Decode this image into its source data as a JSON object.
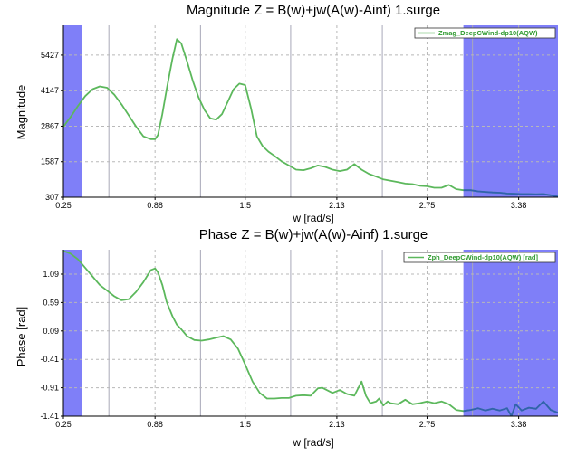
{
  "colors": {
    "series": "#5cb85c",
    "series_highlight": "#3060b0",
    "band": "#7f7ff8",
    "axis": "#000000",
    "grid_dash": "#b8b8b8",
    "grid_solid": "#a8a8b8"
  },
  "chart_data": [
    {
      "type": "line",
      "title": "Magnitude Z = B(w)+jw(A(w)-Ainf) 1.surge",
      "xlabel": "w [rad/s]",
      "ylabel": "Magnitude",
      "xlim": [
        0.25,
        3.65
      ],
      "ylim": [
        307,
        6500
      ],
      "x_ticks": [
        "0.25",
        "0.88",
        "1.5",
        "2.13",
        "2.75",
        "3.38"
      ],
      "y_ticks": [
        "307",
        "1587",
        "2867",
        "4147",
        "5427"
      ],
      "grid": true,
      "legend": "top-right",
      "highlight_ranges": [
        [
          0.25,
          0.38
        ],
        [
          3.0,
          3.65
        ]
      ],
      "series": [
        {
          "name": "Zmag_DeepCWind-dp10(AQW)",
          "x": [
            0.25,
            0.3,
            0.35,
            0.4,
            0.45,
            0.5,
            0.55,
            0.6,
            0.65,
            0.7,
            0.75,
            0.8,
            0.85,
            0.88,
            0.9,
            0.93,
            0.96,
            1.0,
            1.03,
            1.06,
            1.1,
            1.14,
            1.18,
            1.22,
            1.26,
            1.3,
            1.34,
            1.38,
            1.42,
            1.46,
            1.5,
            1.54,
            1.58,
            1.62,
            1.66,
            1.7,
            1.75,
            1.8,
            1.85,
            1.9,
            1.95,
            2.0,
            2.05,
            2.1,
            2.15,
            2.2,
            2.25,
            2.3,
            2.35,
            2.4,
            2.45,
            2.5,
            2.55,
            2.6,
            2.65,
            2.7,
            2.75,
            2.8,
            2.85,
            2.9,
            2.95,
            3.0,
            3.05,
            3.1,
            3.15,
            3.2,
            3.25,
            3.3,
            3.35,
            3.4,
            3.45,
            3.5,
            3.55,
            3.6,
            3.65
          ],
          "y": [
            2850,
            3200,
            3600,
            3950,
            4200,
            4300,
            4250,
            4000,
            3650,
            3250,
            2850,
            2500,
            2400,
            2400,
            2550,
            3300,
            4200,
            5300,
            6000,
            5850,
            5200,
            4500,
            3900,
            3450,
            3150,
            3100,
            3300,
            3750,
            4200,
            4400,
            4350,
            3500,
            2500,
            2150,
            1950,
            1800,
            1600,
            1450,
            1300,
            1280,
            1350,
            1450,
            1400,
            1300,
            1250,
            1300,
            1500,
            1300,
            1150,
            1050,
            950,
            900,
            850,
            800,
            780,
            720,
            700,
            650,
            650,
            750,
            600,
            560,
            560,
            520,
            500,
            480,
            470,
            440,
            430,
            420,
            420,
            410,
            420,
            380,
            330
          ]
        }
      ]
    },
    {
      "type": "line",
      "title": "Phase Z = B(w)+jw(A(w)-Ainf) 1.surge",
      "xlabel": "w [rad/s]",
      "ylabel": "Phase [rad]",
      "xlim": [
        0.25,
        3.65
      ],
      "ylim": [
        -1.41,
        1.52
      ],
      "x_ticks": [
        "0.25",
        "0.88",
        "1.5",
        "2.13",
        "2.75",
        "3.38"
      ],
      "y_ticks": [
        "-1.41",
        "-0.91",
        "-0.41",
        "0.09",
        "0.59",
        "1.09"
      ],
      "grid": true,
      "legend": "top-right",
      "highlight_ranges": [
        [
          0.25,
          0.38
        ],
        [
          3.0,
          3.65
        ]
      ],
      "series": [
        {
          "name": "Zph_DeepCWind-dp10(AQW) [rad]",
          "x": [
            0.25,
            0.3,
            0.35,
            0.4,
            0.45,
            0.5,
            0.55,
            0.6,
            0.65,
            0.7,
            0.75,
            0.8,
            0.85,
            0.88,
            0.9,
            0.93,
            0.96,
            1.0,
            1.03,
            1.06,
            1.1,
            1.15,
            1.2,
            1.25,
            1.3,
            1.35,
            1.4,
            1.45,
            1.5,
            1.55,
            1.6,
            1.65,
            1.7,
            1.75,
            1.8,
            1.85,
            1.9,
            1.95,
            2.0,
            2.03,
            2.06,
            2.1,
            2.15,
            2.2,
            2.25,
            2.28,
            2.3,
            2.33,
            2.36,
            2.4,
            2.42,
            2.45,
            2.48,
            2.5,
            2.55,
            2.6,
            2.65,
            2.7,
            2.75,
            2.8,
            2.85,
            2.9,
            2.95,
            3.0,
            3.05,
            3.1,
            3.15,
            3.2,
            3.25,
            3.3,
            3.33,
            3.36,
            3.4,
            3.45,
            3.5,
            3.55,
            3.6,
            3.65
          ],
          "y": [
            1.5,
            1.45,
            1.35,
            1.2,
            1.05,
            0.9,
            0.8,
            0.7,
            0.63,
            0.65,
            0.78,
            0.95,
            1.16,
            1.19,
            1.12,
            0.9,
            0.6,
            0.35,
            0.2,
            0.12,
            0.0,
            -0.07,
            -0.08,
            -0.06,
            -0.03,
            0.0,
            -0.06,
            -0.22,
            -0.5,
            -0.8,
            -1.0,
            -1.1,
            -1.1,
            -1.09,
            -1.09,
            -1.05,
            -1.04,
            -1.05,
            -0.92,
            -0.91,
            -0.95,
            -1.0,
            -0.95,
            -1.02,
            -1.05,
            -0.9,
            -0.8,
            -1.05,
            -1.18,
            -1.15,
            -1.1,
            -1.22,
            -1.15,
            -1.18,
            -1.2,
            -1.12,
            -1.2,
            -1.18,
            -1.15,
            -1.18,
            -1.15,
            -1.2,
            -1.3,
            -1.32,
            -1.3,
            -1.27,
            -1.31,
            -1.28,
            -1.31,
            -1.27,
            -1.41,
            -1.2,
            -1.31,
            -1.26,
            -1.28,
            -1.15,
            -1.3,
            -1.35
          ]
        }
      ]
    }
  ]
}
